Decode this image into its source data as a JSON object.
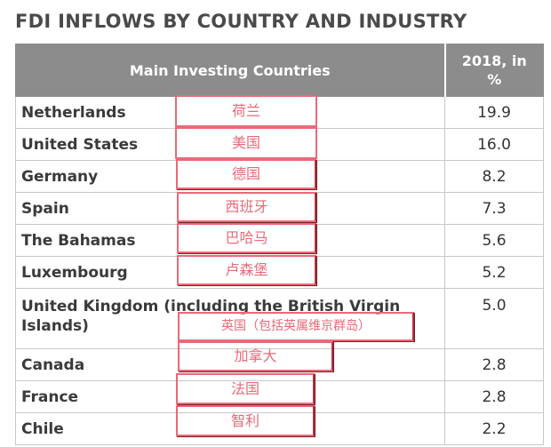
{
  "title": "FDI INFLOWS BY COUNTRY AND INDUSTRY",
  "table": {
    "header_country": "Main Investing Countries",
    "header_value_line1": "2018, in",
    "header_value_line2": "%",
    "rows": [
      {
        "country": "Netherlands",
        "value": "19.9",
        "cn": "荷兰"
      },
      {
        "country": "United States",
        "value": "16.0",
        "cn": "美国"
      },
      {
        "country": "Germany",
        "value": "8.2",
        "cn": "德国"
      },
      {
        "country": "Spain",
        "value": "7.3",
        "cn": "西班牙"
      },
      {
        "country": "The Bahamas",
        "value": "5.6",
        "cn": "巴哈马"
      },
      {
        "country": "Luxembourg",
        "value": "5.2",
        "cn": "卢森堡"
      },
      {
        "country": "United Kingdom (including the British Virgin Islands)",
        "value": "5.0",
        "cn": "英国（包括英属维京群岛）"
      },
      {
        "country": "Canada",
        "value": "2.8",
        "cn": "加拿大"
      },
      {
        "country": "France",
        "value": "2.8",
        "cn": "法国"
      },
      {
        "country": "Chile",
        "value": "2.2",
        "cn": "智利"
      }
    ]
  }
}
